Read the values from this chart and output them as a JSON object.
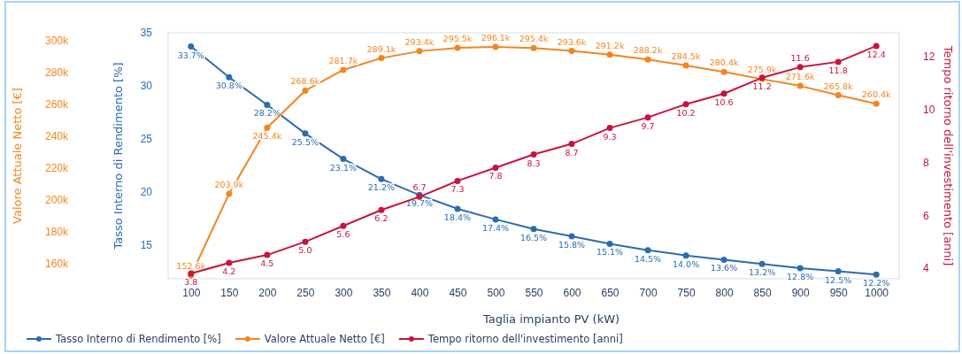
{
  "chart_data": {
    "type": "line",
    "xlabel": "Taglia impianto PV (kW)",
    "ylabel": "Tasso Interno di Rendimento [%]",
    "y2label": "Valore Attuale Netto [€]",
    "y3label": "Tempo ritorno dell'investimento [anni]",
    "x": [
      100,
      150,
      200,
      250,
      300,
      350,
      400,
      450,
      500,
      550,
      600,
      650,
      700,
      750,
      800,
      850,
      900,
      950,
      1000
    ],
    "xlim": [
      70,
      1030
    ],
    "xticks": [
      100,
      150,
      200,
      250,
      300,
      350,
      400,
      450,
      500,
      550,
      600,
      650,
      700,
      750,
      800,
      850,
      900,
      950,
      1000
    ],
    "ylim": [
      11.8,
      35
    ],
    "yticks": [
      15,
      20,
      25,
      30,
      35
    ],
    "y2lim": [
      150500,
      305000
    ],
    "y2ticks": [
      {
        "value": 160000,
        "label": "160k"
      },
      {
        "value": 180000,
        "label": "180k"
      },
      {
        "value": 200000,
        "label": "200k"
      },
      {
        "value": 220000,
        "label": "220k"
      },
      {
        "value": 240000,
        "label": "240k"
      },
      {
        "value": 260000,
        "label": "260k"
      },
      {
        "value": 280000,
        "label": "280k"
      },
      {
        "value": 300000,
        "label": "300k"
      }
    ],
    "y3lim": [
      3.6,
      12.9
    ],
    "y3ticks": [
      4,
      6,
      8,
      10,
      12
    ],
    "grid": false,
    "legend": "bottom",
    "marker": "circle",
    "series": [
      {
        "name": "Tasso Interno di Rendimento [%]",
        "color": "#2b6cb0",
        "axis": "y",
        "values": [
          33.7,
          30.8,
          28.2,
          25.5,
          23.1,
          21.2,
          19.7,
          18.4,
          17.4,
          16.5,
          15.8,
          15.1,
          14.5,
          14.0,
          13.6,
          13.2,
          12.8,
          12.5,
          12.2
        ],
        "value_labels": [
          "33.7%",
          "30.8%",
          "28.2%",
          "25.5%",
          "23.1%",
          "21.2%",
          "19.7%",
          "18.4%",
          "17.4%",
          "16.5%",
          "15.8%",
          "15.1%",
          "14.5%",
          "14.0%",
          "13.6%",
          "13.2%",
          "12.8%",
          "12.5%",
          "12.2%"
        ]
      },
      {
        "name": "Valore Attuale Netto [€]",
        "color": "#f5841f",
        "axis": "y2",
        "values": [
          152600,
          203900,
          245400,
          268600,
          281700,
          289100,
          293400,
          295500,
          296100,
          295400,
          293600,
          291200,
          288200,
          284500,
          280400,
          275900,
          271600,
          265800,
          260400
        ],
        "value_labels": [
          "152.6k",
          "203.9k",
          "245.4k",
          "268.6k",
          "281.7k",
          "289.1k",
          "293.4k",
          "295.5k",
          "296.1k",
          "295.4k",
          "293.6k",
          "291.2k",
          "288.2k",
          "284.5k",
          "280.4k",
          "275.9k",
          "271.6k",
          "265.8k",
          "260.4k"
        ]
      },
      {
        "name": "Tempo ritorno dell'investimento [anni]",
        "color": "#c8143c",
        "axis": "y3",
        "values": [
          3.8,
          4.2,
          4.5,
          5.0,
          5.6,
          6.2,
          6.7,
          7.3,
          7.8,
          8.3,
          8.7,
          9.3,
          9.7,
          10.2,
          10.6,
          11.2,
          11.6,
          11.8,
          12.4
        ],
        "value_labels": [
          "3.8",
          "4.2",
          "4.5",
          "5.0",
          "5.6",
          "6.2",
          "6.7",
          "7.3",
          "7.8",
          "8.3",
          "8.7",
          "9.3",
          "9.7",
          "10.2",
          "10.6",
          "11.2",
          "11.6",
          "11.8",
          "12.4"
        ]
      }
    ]
  }
}
